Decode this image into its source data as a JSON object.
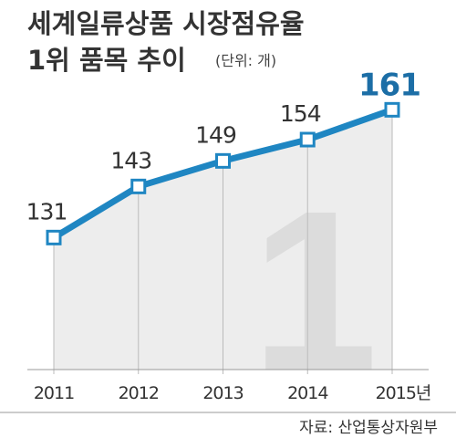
{
  "chart_data": {
    "type": "line",
    "title": "세계일류상품 시장점유율",
    "subtitle": "1위 품목 추이",
    "unit": "(단위: 개)",
    "watermark": "1",
    "source": "자료: 산업통상자원부",
    "categories": [
      "2011",
      "2012",
      "2013",
      "2014",
      "2015년"
    ],
    "values": [
      131,
      143,
      149,
      154,
      161
    ],
    "color": "#1f86c2",
    "ylim": [
      100,
      175
    ]
  }
}
